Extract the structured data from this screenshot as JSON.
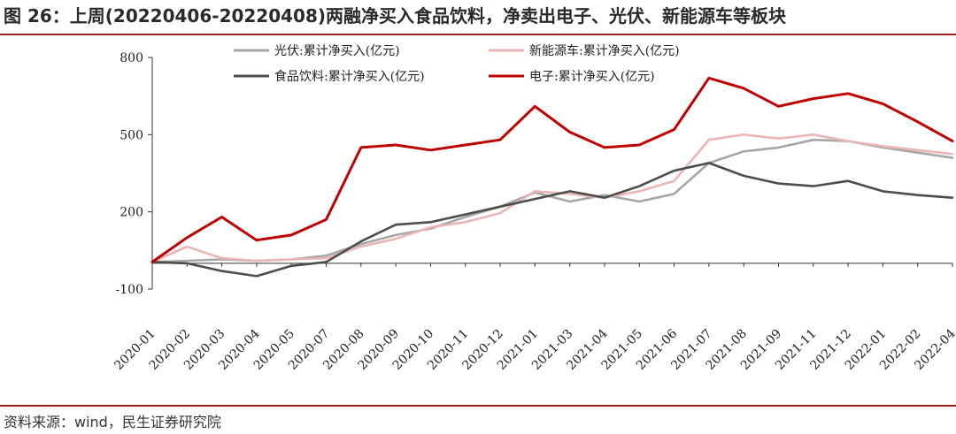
{
  "title": "图 26：上周(20220406-20220408)两融净买入食品饮料，净卖出电子、光伏、新能源车等板块",
  "source": "资料来源：wind，民生证券研究院",
  "chart_data": {
    "type": "line",
    "title": "图 26：上周(20220406-20220408)两融净买入食品饮料，净卖出电子、光伏、新能源车等板块",
    "xlabel": "",
    "ylabel": "",
    "ylim": [
      -100,
      800
    ],
    "yticks": [
      -100,
      200,
      500,
      800
    ],
    "grid": false,
    "legend_position": "top",
    "categories": [
      "2020-01",
      "2020-02",
      "2020-03",
      "2020-04",
      "2020-05",
      "2020-07",
      "2020-08",
      "2020-09",
      "2020-10",
      "2020-11",
      "2020-12",
      "2021-01",
      "2021-03",
      "2021-04",
      "2021-05",
      "2021-06",
      "2021-07",
      "2021-08",
      "2021-09",
      "2021-11",
      "2021-12",
      "2022-01",
      "2022-02",
      "2022-04"
    ],
    "series": [
      {
        "name": "光伏:累计净买入(亿元)",
        "color": "#a6a6a6",
        "values": [
          5,
          10,
          15,
          10,
          15,
          30,
          75,
          110,
          135,
          180,
          220,
          275,
          240,
          265,
          240,
          270,
          390,
          435,
          450,
          480,
          475,
          450,
          430,
          410
        ]
      },
      {
        "name": "新能源车:累计净买入(亿元)",
        "color": "#ebb5b5",
        "values": [
          5,
          65,
          20,
          10,
          15,
          20,
          65,
          95,
          140,
          160,
          195,
          280,
          270,
          255,
          280,
          320,
          480,
          500,
          485,
          500,
          475,
          455,
          440,
          425
        ]
      },
      {
        "name": "食品饮料:累计净买入(亿元)",
        "color": "#4d4d4d",
        "values": [
          5,
          0,
          -30,
          -50,
          -10,
          5,
          85,
          150,
          160,
          190,
          220,
          250,
          280,
          255,
          300,
          360,
          390,
          340,
          310,
          300,
          320,
          280,
          265,
          255
        ]
      },
      {
        "name": "电子:累计净买入(亿元)",
        "color": "#c00000",
        "values": [
          5,
          100,
          180,
          90,
          110,
          170,
          450,
          460,
          440,
          460,
          480,
          610,
          510,
          450,
          460,
          520,
          720,
          680,
          610,
          640,
          660,
          620,
          550,
          475
        ]
      }
    ]
  }
}
